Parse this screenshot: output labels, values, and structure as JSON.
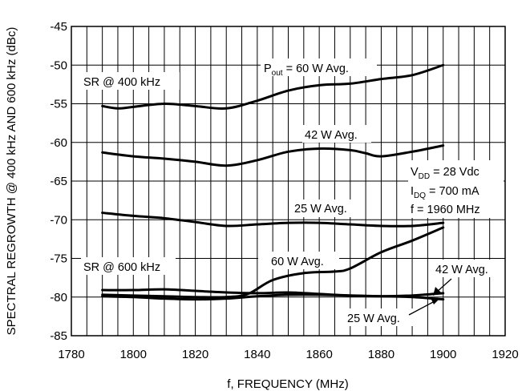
{
  "chart_data": {
    "type": "line",
    "title": "",
    "xlabel": "f, FREQUENCY (MHz)",
    "ylabel": "SPECTRAL REGROWTH @ 400 kHz AND 600 kHz (dBc)",
    "xlim": [
      1780,
      1920
    ],
    "ylim": [
      -85,
      -45
    ],
    "x_ticks": [
      "1780",
      "1800",
      "1820",
      "1840",
      "1860",
      "1880",
      "1900",
      "1920"
    ],
    "y_ticks": [
      "-45",
      "-50",
      "-55",
      "-60",
      "-65",
      "-70",
      "-75",
      "-80",
      "-85"
    ],
    "grid": "on",
    "legend": "none",
    "series": [
      {
        "name": "P_out = 60 W Avg. (SR @ 400 kHz)",
        "x": [
          1790,
          1795,
          1800,
          1810,
          1820,
          1830,
          1840,
          1850,
          1860,
          1870,
          1880,
          1890,
          1900
        ],
        "values": [
          -55.3,
          -55.6,
          -55.4,
          -55.0,
          -55.3,
          -55.6,
          -54.6,
          -53.3,
          -52.6,
          -52.4,
          -51.8,
          -51.3,
          -50.0
        ]
      },
      {
        "name": "42 W Avg. (SR @ 400 kHz)",
        "x": [
          1790,
          1800,
          1810,
          1820,
          1830,
          1840,
          1850,
          1860,
          1870,
          1875,
          1880,
          1890,
          1900
        ],
        "values": [
          -61.3,
          -61.8,
          -62.1,
          -62.5,
          -63.0,
          -62.3,
          -61.2,
          -60.8,
          -61.0,
          -61.4,
          -61.8,
          -61.2,
          -60.4
        ]
      },
      {
        "name": "25 W Avg. (SR @ 400 kHz)",
        "x": [
          1790,
          1800,
          1810,
          1820,
          1830,
          1840,
          1850,
          1860,
          1870,
          1880,
          1890,
          1900
        ],
        "values": [
          -69.1,
          -69.5,
          -69.8,
          -70.3,
          -70.8,
          -70.6,
          -70.4,
          -70.4,
          -70.6,
          -70.8,
          -70.8,
          -70.4
        ]
      },
      {
        "name": "60 W Avg. (SR @ 600 kHz)",
        "x": [
          1790,
          1800,
          1810,
          1820,
          1830,
          1837,
          1845,
          1855,
          1865,
          1870,
          1880,
          1890,
          1900
        ],
        "values": [
          -79.7,
          -79.8,
          -79.9,
          -80.0,
          -80.0,
          -79.6,
          -77.8,
          -76.9,
          -76.7,
          -76.3,
          -74.2,
          -72.7,
          -71.0
        ]
      },
      {
        "name": "42 W Avg. (SR @ 600 kHz)",
        "x": [
          1790,
          1800,
          1810,
          1820,
          1830,
          1840,
          1850,
          1860,
          1870,
          1880,
          1890,
          1900
        ],
        "values": [
          -79.1,
          -79.1,
          -79.0,
          -79.2,
          -79.4,
          -79.5,
          -79.4,
          -79.6,
          -79.8,
          -79.9,
          -79.8,
          -79.5
        ]
      },
      {
        "name": "25 W Avg. (SR @ 600 kHz)",
        "x": [
          1790,
          1800,
          1810,
          1820,
          1830,
          1840,
          1850,
          1860,
          1870,
          1880,
          1890,
          1900
        ],
        "values": [
          -79.9,
          -80.0,
          -80.2,
          -80.3,
          -80.2,
          -79.9,
          -79.7,
          -79.7,
          -79.8,
          -79.9,
          -80.0,
          -80.3
        ]
      }
    ],
    "annotations": {
      "sr400": "SR @ 400 kHz",
      "sr600": "SR @ 600 kHz",
      "pout_prefix": "P",
      "pout_sub": "out",
      "pout_rest": " = 60 W Avg.",
      "w42_upper": "42 W Avg.",
      "w25_upper": "25 W Avg.",
      "w60_lower": "60 W Avg.",
      "w42_lower": "42 W Avg.",
      "w25_lower": "25 W Avg.",
      "vdd_prefix": "V",
      "vdd_sub": "DD",
      "vdd_rest": " = 28 Vdc",
      "idq_prefix": "I",
      "idq_sub": "DQ",
      "idq_rest": " = 700 mA",
      "freq": "f = 1960 MHz"
    }
  }
}
